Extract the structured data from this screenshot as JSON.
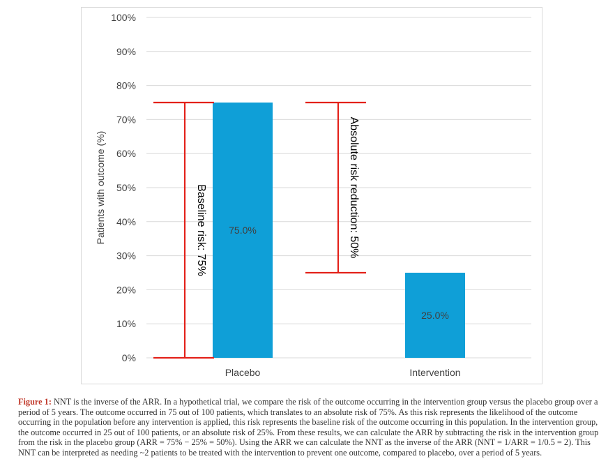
{
  "chart_data": {
    "type": "bar",
    "categories": [
      "Placebo",
      "Intervention"
    ],
    "values": [
      75.0,
      25.0
    ],
    "data_labels": [
      "75.0%",
      "25.0%"
    ],
    "ylabel": "Patients with outcome (%)",
    "xlabel": "",
    "ylim": [
      0,
      100
    ],
    "yticks": [
      0,
      10,
      20,
      30,
      40,
      50,
      60,
      70,
      80,
      90,
      100
    ],
    "ytick_labels": [
      "0%",
      "10%",
      "20%",
      "30%",
      "40%",
      "50%",
      "60%",
      "70%",
      "80%",
      "90%",
      "100%"
    ],
    "grid": true,
    "bar_color": "#0f9fd7",
    "annotations": [
      {
        "text": "Baseline risk: 75%",
        "from": 0,
        "to": 75,
        "color": "#e32119"
      },
      {
        "text": "Absolute risk reduction: 50%",
        "from": 25,
        "to": 75,
        "color": "#e32119"
      }
    ]
  },
  "caption": {
    "label": "Figure 1:",
    "text": "NNT is the inverse of the ARR. In a hypothetical trial, we compare the risk of the outcome occurring in the intervention group versus the placebo group over a period of 5 years. The outcome occurred in 75 out of 100 patients, which translates to an absolute risk of 75%. As this risk represents the likelihood of the outcome occurring in the population before any intervention is applied, this risk represents the baseline risk of the outcome occurring in this population. In the intervention group, the outcome occurred in 25 out of 100 patients, or an absolute risk of 25%. From these results, we can calculate the ARR by subtracting the risk in the intervention group from the risk in the placebo group (ARR = 75% − 25% = 50%). Using the ARR we can calculate the NNT as the inverse of the ARR (NNT = 1/ARR = 1/0.5 = 2). This NNT can be interpreted as needing ~2 patients to be treated with the intervention to prevent one outcome, compared to placebo, over a period of 5 years.",
    "label_color": "#c0392b"
  }
}
